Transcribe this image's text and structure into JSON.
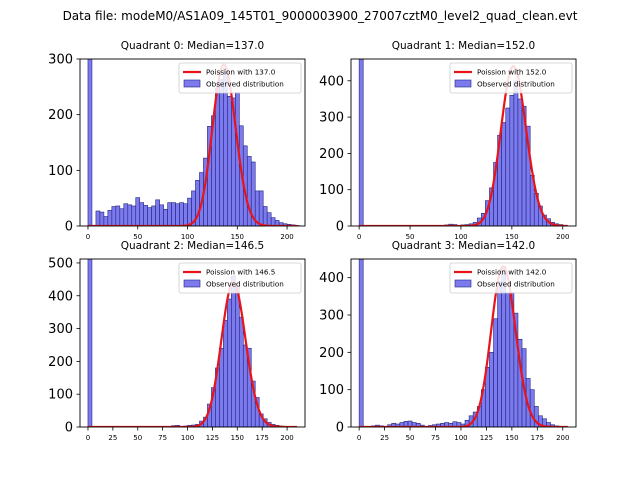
{
  "figure_title": "Data file: modeM0/AS1A09_145T01_9000003900_27007cztM0_level2_quad_clean.evt",
  "colors": {
    "bar_fill": "#7b7bef",
    "bar_edge": "#22227a",
    "fit_line": "#e8141a",
    "axis": "#000000"
  },
  "chart_data": [
    {
      "type": "bar",
      "title": "Quadrant 0: Median=137.0",
      "xlabel": "",
      "ylabel": "",
      "xlim": [
        -8,
        218
      ],
      "ylim": [
        0,
        300
      ],
      "xticks": [
        0,
        50,
        100,
        150,
        200
      ],
      "yticks": [
        0,
        100,
        200,
        300
      ],
      "bin_width": 4,
      "legend": {
        "position": "top-right",
        "line_label": "Poission with 137.0",
        "bar_label": "Observed distribution"
      },
      "fit": {
        "type": "poisson",
        "mean": 137.0,
        "peak": 290
      },
      "bins": [
        [
          0,
          300
        ],
        [
          8,
          27
        ],
        [
          12,
          25
        ],
        [
          16,
          17
        ],
        [
          20,
          28
        ],
        [
          24,
          35
        ],
        [
          28,
          36
        ],
        [
          32,
          31
        ],
        [
          36,
          40
        ],
        [
          40,
          38
        ],
        [
          44,
          36
        ],
        [
          48,
          51
        ],
        [
          52,
          42
        ],
        [
          56,
          37
        ],
        [
          60,
          33
        ],
        [
          64,
          36
        ],
        [
          68,
          47
        ],
        [
          72,
          38
        ],
        [
          76,
          30
        ],
        [
          80,
          42
        ],
        [
          84,
          42
        ],
        [
          88,
          40
        ],
        [
          92,
          42
        ],
        [
          96,
          40
        ],
        [
          100,
          50
        ],
        [
          104,
          63
        ],
        [
          108,
          82
        ],
        [
          112,
          96
        ],
        [
          116,
          122
        ],
        [
          120,
          179
        ],
        [
          124,
          198
        ],
        [
          128,
          248
        ],
        [
          132,
          263
        ],
        [
          136,
          283
        ],
        [
          140,
          233
        ],
        [
          144,
          230
        ],
        [
          148,
          240
        ],
        [
          152,
          180
        ],
        [
          156,
          144
        ],
        [
          160,
          125
        ],
        [
          164,
          115
        ],
        [
          168,
          63
        ],
        [
          172,
          63
        ],
        [
          176,
          35
        ],
        [
          180,
          24
        ],
        [
          184,
          15
        ],
        [
          188,
          10
        ],
        [
          192,
          6
        ],
        [
          196,
          4
        ],
        [
          200,
          3
        ],
        [
          204,
          2
        ],
        [
          208,
          1
        ]
      ]
    },
    {
      "type": "bar",
      "title": "Quadrant 1: Median=152.0",
      "xlabel": "",
      "ylabel": "",
      "xlim": [
        -8,
        213
      ],
      "ylim": [
        0,
        460
      ],
      "xticks": [
        0,
        50,
        100,
        150,
        200
      ],
      "yticks": [
        0,
        100,
        200,
        300,
        400
      ],
      "bin_width": 4,
      "legend": {
        "position": "top-right",
        "line_label": "Poission with 152.0",
        "bar_label": "Observed distribution"
      },
      "fit": {
        "type": "poisson",
        "mean": 152.0,
        "peak": 440
      },
      "bins": [
        [
          0,
          460
        ],
        [
          84,
          3
        ],
        [
          88,
          5
        ],
        [
          92,
          4
        ],
        [
          100,
          3
        ],
        [
          104,
          4
        ],
        [
          108,
          6
        ],
        [
          112,
          10
        ],
        [
          116,
          22
        ],
        [
          120,
          35
        ],
        [
          124,
          70
        ],
        [
          128,
          105
        ],
        [
          132,
          175
        ],
        [
          136,
          250
        ],
        [
          140,
          285
        ],
        [
          144,
          325
        ],
        [
          148,
          360
        ],
        [
          152,
          400
        ],
        [
          156,
          350
        ],
        [
          160,
          330
        ],
        [
          164,
          275
        ],
        [
          168,
          140
        ],
        [
          172,
          90
        ],
        [
          176,
          55
        ],
        [
          180,
          30
        ],
        [
          184,
          20
        ],
        [
          188,
          10
        ],
        [
          192,
          6
        ],
        [
          196,
          4
        ],
        [
          200,
          2
        ]
      ]
    },
    {
      "type": "bar",
      "title": "Quadrant 2: Median=146.5",
      "xlabel": "",
      "ylabel": "",
      "xlim": [
        -8,
        218
      ],
      "ylim": [
        0,
        512
      ],
      "xticks": [
        0,
        25,
        50,
        75,
        100,
        125,
        150,
        175,
        200
      ],
      "yticks": [
        0,
        100,
        200,
        300,
        400,
        500
      ],
      "bin_width": 4,
      "legend": {
        "position": "top-right",
        "line_label": "Poission with 146.5",
        "bar_label": "Observed distribution"
      },
      "fit": {
        "type": "poisson",
        "mean": 146.5,
        "peak": 440
      },
      "bins": [
        [
          0,
          512
        ],
        [
          84,
          4
        ],
        [
          88,
          5
        ],
        [
          96,
          3
        ],
        [
          100,
          5
        ],
        [
          104,
          6
        ],
        [
          108,
          8
        ],
        [
          112,
          18
        ],
        [
          116,
          30
        ],
        [
          120,
          70
        ],
        [
          124,
          120
        ],
        [
          128,
          180
        ],
        [
          132,
          240
        ],
        [
          136,
          325
        ],
        [
          140,
          390
        ],
        [
          144,
          460
        ],
        [
          148,
          430
        ],
        [
          152,
          335
        ],
        [
          156,
          250
        ],
        [
          160,
          240
        ],
        [
          164,
          140
        ],
        [
          168,
          90
        ],
        [
          172,
          40
        ],
        [
          176,
          25
        ],
        [
          180,
          14
        ],
        [
          184,
          8
        ],
        [
          188,
          5
        ],
        [
          192,
          3
        ],
        [
          196,
          2
        ],
        [
          200,
          2
        ]
      ]
    },
    {
      "type": "bar",
      "title": "Quadrant 3: Median=142.0",
      "xlabel": "",
      "ylabel": "",
      "xlim": [
        -8,
        213
      ],
      "ylim": [
        0,
        450
      ],
      "xticks": [
        0,
        25,
        50,
        75,
        100,
        125,
        150,
        175,
        200
      ],
      "yticks": [
        0,
        100,
        200,
        300,
        400
      ],
      "bin_width": 4,
      "legend": {
        "position": "top-right",
        "line_label": "Poission with 142.0",
        "bar_label": "Observed distribution"
      },
      "fit": {
        "type": "poisson",
        "mean": 142.0,
        "peak": 430
      },
      "bins": [
        [
          0,
          450
        ],
        [
          12,
          3
        ],
        [
          16,
          5
        ],
        [
          20,
          3
        ],
        [
          28,
          6
        ],
        [
          32,
          10
        ],
        [
          36,
          8
        ],
        [
          40,
          12
        ],
        [
          44,
          15
        ],
        [
          48,
          16
        ],
        [
          52,
          12
        ],
        [
          56,
          10
        ],
        [
          60,
          5
        ],
        [
          68,
          4
        ],
        [
          72,
          6
        ],
        [
          76,
          8
        ],
        [
          80,
          10
        ],
        [
          84,
          12
        ],
        [
          88,
          10
        ],
        [
          92,
          14
        ],
        [
          96,
          12
        ],
        [
          100,
          8
        ],
        [
          104,
          18
        ],
        [
          108,
          30
        ],
        [
          112,
          40
        ],
        [
          116,
          55
        ],
        [
          120,
          100
        ],
        [
          124,
          160
        ],
        [
          128,
          200
        ],
        [
          132,
          290
        ],
        [
          136,
          390
        ],
        [
          140,
          430
        ],
        [
          144,
          360
        ],
        [
          148,
          360
        ],
        [
          152,
          305
        ],
        [
          156,
          235
        ],
        [
          160,
          210
        ],
        [
          164,
          130
        ],
        [
          168,
          100
        ],
        [
          172,
          55
        ],
        [
          176,
          30
        ],
        [
          180,
          22
        ],
        [
          184,
          12
        ],
        [
          188,
          6
        ],
        [
          192,
          3
        ],
        [
          196,
          2
        ]
      ]
    }
  ]
}
